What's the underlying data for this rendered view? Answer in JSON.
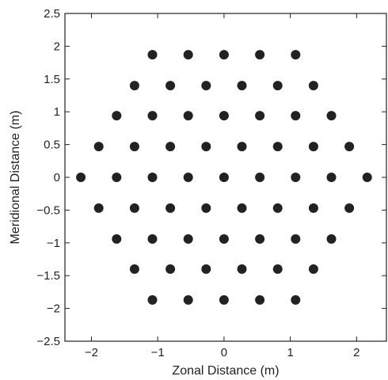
{
  "chart_data": {
    "type": "scatter",
    "xlabel": "Zonal Distance (m)",
    "ylabel": "Meridional Distance (m)",
    "xlim": [
      -2.4,
      2.45
    ],
    "ylim": [
      -2.5,
      2.5
    ],
    "xticks": [
      -2,
      -1,
      0,
      1,
      2
    ],
    "yticks": [
      -2.5,
      -2,
      -1.5,
      -1,
      -0.5,
      0,
      0.5,
      1,
      1.5,
      2,
      2.5
    ],
    "xtick_labels": [
      "−2",
      "−1",
      "0",
      "1",
      "2"
    ],
    "ytick_labels": [
      "−2.5",
      "−2",
      "−1.5",
      "−1",
      "−0.5",
      "0",
      "0.5",
      "1",
      "1.5",
      "2",
      "2.5"
    ],
    "marker_color": "#222222",
    "series": [
      {
        "x": [
          -1.08,
          -0.54,
          0,
          0.54,
          1.08,
          -1.35,
          -0.81,
          -0.27,
          0.27,
          0.81,
          1.35,
          -1.62,
          -1.08,
          -0.54,
          0,
          0.54,
          1.08,
          1.62,
          -1.89,
          -1.35,
          -0.81,
          -0.27,
          0.27,
          0.81,
          1.35,
          1.89,
          -2.16,
          -1.62,
          -1.08,
          -0.54,
          0,
          0.54,
          1.08,
          1.62,
          2.16,
          -1.89,
          -1.35,
          -0.81,
          -0.27,
          0.27,
          0.81,
          1.35,
          1.89,
          -1.62,
          -1.08,
          -0.54,
          0,
          0.54,
          1.08,
          1.62,
          -1.35,
          -0.81,
          -0.27,
          0.27,
          0.81,
          1.35,
          -1.08,
          -0.54,
          0,
          0.54,
          1.08
        ],
        "y": [
          1.87,
          1.87,
          1.87,
          1.87,
          1.87,
          1.4,
          1.4,
          1.4,
          1.4,
          1.4,
          1.4,
          0.94,
          0.94,
          0.94,
          0.94,
          0.94,
          0.94,
          0.94,
          0.47,
          0.47,
          0.47,
          0.47,
          0.47,
          0.47,
          0.47,
          0.47,
          0,
          0,
          0,
          0,
          0,
          0,
          0,
          0,
          0,
          -0.47,
          -0.47,
          -0.47,
          -0.47,
          -0.47,
          -0.47,
          -0.47,
          -0.47,
          -0.94,
          -0.94,
          -0.94,
          -0.94,
          -0.94,
          -0.94,
          -0.94,
          -1.4,
          -1.4,
          -1.4,
          -1.4,
          -1.4,
          -1.4,
          -1.87,
          -1.87,
          -1.87,
          -1.87,
          -1.87
        ]
      }
    ]
  }
}
